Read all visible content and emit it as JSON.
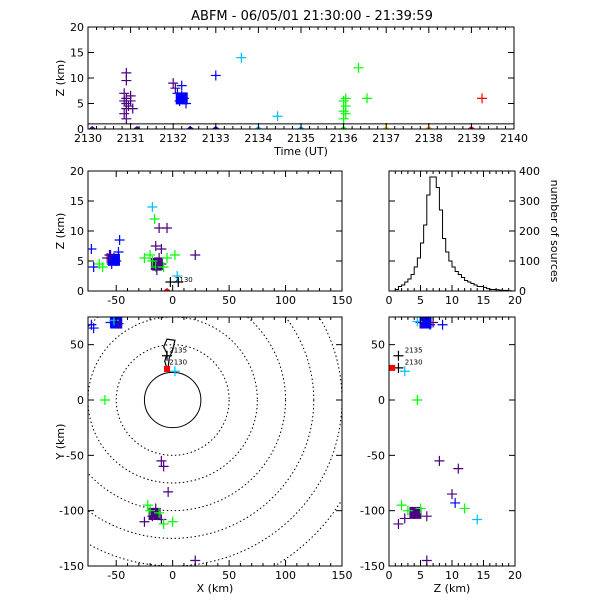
{
  "title": "ABFM - 06/05/01 21:30:00 - 21:39:59",
  "chart_data": [
    {
      "panel": "time-height",
      "type": "scatter",
      "xlabel": "Time (UT)",
      "ylabel": "Z (km)",
      "xlim": [
        2130,
        2140
      ],
      "ylim": [
        0,
        20
      ],
      "xticks": [
        2130,
        2131,
        2132,
        2133,
        2134,
        2135,
        2136,
        2137,
        2138,
        2139,
        2140
      ],
      "yticks": [
        0,
        5,
        10,
        15,
        20
      ],
      "hline": 1,
      "points": [
        {
          "x": 2130.9,
          "y": 11,
          "c": "#4b0082"
        },
        {
          "x": 2130.9,
          "y": 9.5,
          "c": "#4b0082"
        },
        {
          "x": 2130.85,
          "y": 7,
          "c": "#4b0082"
        },
        {
          "x": 2130.9,
          "y": 6,
          "c": "#4b0082"
        },
        {
          "x": 2130.85,
          "y": 5.5,
          "c": "#4b0082"
        },
        {
          "x": 2130.9,
          "y": 5,
          "c": "#4b0082"
        },
        {
          "x": 2130.95,
          "y": 4.5,
          "c": "#4b0082"
        },
        {
          "x": 2130.9,
          "y": 4,
          "c": "#4b0082"
        },
        {
          "x": 2130.85,
          "y": 3,
          "c": "#4b0082"
        },
        {
          "x": 2130.9,
          "y": 2,
          "c": "#4b0082"
        },
        {
          "x": 2131.0,
          "y": 6.5,
          "c": "#4b0082"
        },
        {
          "x": 2131.0,
          "y": 5.5,
          "c": "#4b0082"
        },
        {
          "x": 2131.05,
          "y": 4,
          "c": "#4b0082"
        },
        {
          "x": 2132.0,
          "y": 9,
          "c": "#4b0082"
        },
        {
          "x": 2132.05,
          "y": 8,
          "c": "#4b0082"
        },
        {
          "x": 2132.2,
          "y": 8.5,
          "c": "#0000ff"
        },
        {
          "x": 2132.1,
          "y": 7,
          "c": "#0000ff"
        },
        {
          "x": 2132.2,
          "y": 6.5,
          "c": "#0000ff"
        },
        {
          "x": 2132.25,
          "y": 6,
          "c": "#0000ff"
        },
        {
          "x": 2132.15,
          "y": 5.5,
          "c": "#0000ff"
        },
        {
          "x": 2132.3,
          "y": 5,
          "c": "#0000ff"
        },
        {
          "x": 2133.0,
          "y": 10.5,
          "c": "#0000ff"
        },
        {
          "x": 2133.6,
          "y": 14,
          "c": "#00bfff"
        },
        {
          "x": 2134.45,
          "y": 2.5,
          "c": "#00bfff"
        },
        {
          "x": 2136.0,
          "y": 5.5,
          "c": "#00ff00"
        },
        {
          "x": 2136.05,
          "y": 4.5,
          "c": "#00ff00"
        },
        {
          "x": 2136.0,
          "y": 3.5,
          "c": "#00ff00"
        },
        {
          "x": 2136.05,
          "y": 3,
          "c": "#00ff00"
        },
        {
          "x": 2136.0,
          "y": 2,
          "c": "#00ff00"
        },
        {
          "x": 2136.05,
          "y": 6,
          "c": "#00ff00"
        },
        {
          "x": 2136.35,
          "y": 12,
          "c": "#00ff00"
        },
        {
          "x": 2136.55,
          "y": 6,
          "c": "#00ff00"
        },
        {
          "x": 2139.25,
          "y": 6,
          "c": "#ff0000"
        }
      ],
      "ground_markers": [
        {
          "x": 2130.1,
          "c": "#4b0082"
        },
        {
          "x": 2131.15,
          "c": "#4b0082"
        },
        {
          "x": 2132.4,
          "c": "#0000ff"
        },
        {
          "x": 2133.0,
          "c": "#0000ff"
        },
        {
          "x": 2134.0,
          "c": "#00bfff"
        },
        {
          "x": 2135.0,
          "c": "#00bfff"
        },
        {
          "x": 2136.0,
          "c": "#00ff00"
        },
        {
          "x": 2137.0,
          "c": "#ffd700"
        },
        {
          "x": 2138.0,
          "c": "#ffa500"
        },
        {
          "x": 2139.0,
          "c": "#ff0000"
        }
      ],
      "blobs": [
        {
          "x": 2132.2,
          "y": 6,
          "c": "#0000ff"
        }
      ]
    },
    {
      "panel": "x-z",
      "type": "scatter",
      "xlabel": "",
      "ylabel": "Z (km)",
      "xlim": [
        -75,
        150
      ],
      "ylim": [
        0,
        20
      ],
      "xticks": [
        -50,
        0,
        50,
        100,
        150
      ],
      "yticks": [
        0,
        5,
        10,
        15,
        20
      ],
      "annotations": [
        {
          "text": "2130",
          "x": 2,
          "y": 1.5
        }
      ],
      "points": [
        {
          "x": -72,
          "y": 7,
          "c": "#0000ff"
        },
        {
          "x": -70,
          "y": 4,
          "c": "#0000ff"
        },
        {
          "x": -55,
          "y": 6,
          "c": "#0000ff"
        },
        {
          "x": -52,
          "y": 5.5,
          "c": "#0000ff"
        },
        {
          "x": -50,
          "y": 5,
          "c": "#0000ff"
        },
        {
          "x": -54,
          "y": 4.5,
          "c": "#0000ff"
        },
        {
          "x": -48,
          "y": 6.5,
          "c": "#0000ff"
        },
        {
          "x": -47,
          "y": 8.5,
          "c": "#0000ff"
        },
        {
          "x": -58,
          "y": 5.5,
          "c": "#4b0082"
        },
        {
          "x": -56,
          "y": 6,
          "c": "#4b0082"
        },
        {
          "x": -65,
          "y": 4.5,
          "c": "#00ff00"
        },
        {
          "x": -62,
          "y": 4,
          "c": "#00ff00"
        },
        {
          "x": -18,
          "y": 14,
          "c": "#00bfff"
        },
        {
          "x": -16,
          "y": 12,
          "c": "#00ff00"
        },
        {
          "x": -12,
          "y": 10.5,
          "c": "#4b0082"
        },
        {
          "x": -5,
          "y": 10.5,
          "c": "#4b0082"
        },
        {
          "x": -15,
          "y": 7.5,
          "c": "#4b0082"
        },
        {
          "x": -10,
          "y": 7,
          "c": "#4b0082"
        },
        {
          "x": -20,
          "y": 6,
          "c": "#00ff00"
        },
        {
          "x": -18,
          "y": 5,
          "c": "#00ff00"
        },
        {
          "x": -15,
          "y": 4,
          "c": "#00ff00"
        },
        {
          "x": -12,
          "y": 5.5,
          "c": "#4b0082"
        },
        {
          "x": -10,
          "y": 4.5,
          "c": "#4b0082"
        },
        {
          "x": -14,
          "y": 3.5,
          "c": "#4b0082"
        },
        {
          "x": -8,
          "y": 4,
          "c": "#00ff00"
        },
        {
          "x": -5,
          "y": 5.5,
          "c": "#00ff00"
        },
        {
          "x": -25,
          "y": 5.5,
          "c": "#00ff00"
        },
        {
          "x": 2,
          "y": 6,
          "c": "#00ff00"
        },
        {
          "x": 4,
          "y": 2.5,
          "c": "#00bfff"
        },
        {
          "x": 20,
          "y": 6,
          "c": "#4b0082"
        },
        {
          "x": -2,
          "y": 1.5,
          "c": "#000000"
        },
        {
          "x": 5,
          "y": 1.5,
          "c": "#000000"
        }
      ],
      "blobs": [
        {
          "x": -52,
          "y": 5.2,
          "c": "#0000ff"
        },
        {
          "x": -14,
          "y": 4.5,
          "c": "#4b0082"
        }
      ],
      "ground_markers": [
        {
          "x": -5,
          "c": "#ff0000"
        }
      ]
    },
    {
      "panel": "histogram",
      "type": "bar",
      "xlabel": "",
      "ylabel": "number of sources",
      "xlim": [
        0,
        20
      ],
      "ylim": [
        0,
        400
      ],
      "xticks": [
        0,
        5,
        10,
        15,
        20
      ],
      "yticks": [
        0,
        100,
        200,
        300,
        400
      ],
      "bin_width": 0.5,
      "bins_start": 0,
      "values": [
        0,
        0,
        5,
        15,
        20,
        30,
        40,
        55,
        80,
        110,
        160,
        220,
        320,
        380,
        380,
        345,
        270,
        175,
        130,
        100,
        80,
        65,
        55,
        45,
        35,
        30,
        25,
        20,
        15,
        15,
        12,
        8,
        5,
        5,
        4,
        3,
        2,
        2,
        1,
        0
      ]
    },
    {
      "panel": "x-y",
      "type": "scatter",
      "xlabel": "X (km)",
      "ylabel": "Y (km)",
      "xlim": [
        -75,
        150
      ],
      "ylim": [
        -150,
        75
      ],
      "xticks": [
        -50,
        0,
        50,
        100,
        150
      ],
      "yticks": [
        -150,
        -100,
        -50,
        0,
        50
      ],
      "range_rings_km": [
        25,
        50,
        75,
        100,
        125,
        150,
        175
      ],
      "annotations": [
        {
          "text": "2135",
          "x": -3,
          "y": 43
        },
        {
          "text": "2130",
          "x": -3,
          "y": 32
        }
      ],
      "points": [
        {
          "x": -72,
          "y": 68,
          "c": "#0000ff"
        },
        {
          "x": -70,
          "y": 65,
          "c": "#0000ff"
        },
        {
          "x": -55,
          "y": 70,
          "c": "#0000ff"
        },
        {
          "x": -50,
          "y": 71,
          "c": "#0000ff"
        },
        {
          "x": -48,
          "y": 69,
          "c": "#4b0082"
        },
        {
          "x": -52,
          "y": 72,
          "c": "#00bfff"
        },
        {
          "x": -5,
          "y": 40,
          "c": "#000000"
        },
        {
          "x": 2,
          "y": 26,
          "c": "#00bfff"
        },
        {
          "x": -60,
          "y": 0,
          "c": "#00ff00"
        },
        {
          "x": -10,
          "y": -55,
          "c": "#4b0082"
        },
        {
          "x": -8,
          "y": -60,
          "c": "#4b0082"
        },
        {
          "x": -4,
          "y": -83,
          "c": "#4b0082"
        },
        {
          "x": -22,
          "y": -95,
          "c": "#00ff00"
        },
        {
          "x": -20,
          "y": -100,
          "c": "#00ff00"
        },
        {
          "x": -18,
          "y": -105,
          "c": "#4b0082"
        },
        {
          "x": -15,
          "y": -98,
          "c": "#4b0082"
        },
        {
          "x": -12,
          "y": -102,
          "c": "#00ff00"
        },
        {
          "x": -10,
          "y": -108,
          "c": "#4b0082"
        },
        {
          "x": -25,
          "y": -110,
          "c": "#4b0082"
        },
        {
          "x": -8,
          "y": -112,
          "c": "#00ff00"
        },
        {
          "x": 0,
          "y": -110,
          "c": "#00ff00"
        },
        {
          "x": 20,
          "y": -145,
          "c": "#4b0082"
        }
      ],
      "blobs": [
        {
          "x": -50,
          "y": 70,
          "c": "#0000ff"
        },
        {
          "x": -16,
          "y": -103,
          "c": "#4b0082"
        }
      ],
      "track": [
        [
          -5,
          28
        ],
        [
          -7,
          35
        ],
        [
          -5,
          42
        ],
        [
          -8,
          48
        ],
        [
          -5,
          55
        ],
        [
          2,
          54
        ],
        [
          0,
          45
        ],
        [
          -3,
          38
        ],
        [
          -4,
          30
        ]
      ],
      "red_markers": [
        {
          "x": -5,
          "y": 28
        }
      ]
    },
    {
      "panel": "z-y",
      "type": "scatter",
      "xlabel": "Z (km)",
      "ylabel": "",
      "xlim": [
        0,
        20
      ],
      "ylim": [
        -150,
        75
      ],
      "xticks": [
        0,
        5,
        10,
        15,
        20
      ],
      "yticks": [
        -150,
        -100,
        -50,
        0,
        50
      ],
      "annotations": [
        {
          "text": "2135",
          "x": 2.5,
          "y": 43
        },
        {
          "text": "2130",
          "x": 2.5,
          "y": 32
        }
      ],
      "points": [
        {
          "x": 5,
          "y": 70,
          "c": "#4b0082"
        },
        {
          "x": 5.5,
          "y": 70,
          "c": "#0000ff"
        },
        {
          "x": 6.5,
          "y": 68,
          "c": "#0000ff"
        },
        {
          "x": 7,
          "y": 70,
          "c": "#4b0082"
        },
        {
          "x": 8.5,
          "y": 68,
          "c": "#0000ff"
        },
        {
          "x": 4.5,
          "y": 71,
          "c": "#00bfff"
        },
        {
          "x": 1.5,
          "y": 40,
          "c": "#000000"
        },
        {
          "x": 1.5,
          "y": 29,
          "c": "#000000"
        },
        {
          "x": 2.5,
          "y": 26,
          "c": "#00bfff"
        },
        {
          "x": 4.5,
          "y": 0,
          "c": "#00ff00"
        },
        {
          "x": 8,
          "y": -55,
          "c": "#4b0082"
        },
        {
          "x": 11,
          "y": -62,
          "c": "#4b0082"
        },
        {
          "x": 10,
          "y": -85,
          "c": "#4b0082"
        },
        {
          "x": 2,
          "y": -95,
          "c": "#00ff00"
        },
        {
          "x": 3,
          "y": -100,
          "c": "#00ff00"
        },
        {
          "x": 4,
          "y": -103,
          "c": "#4b0082"
        },
        {
          "x": 5,
          "y": -98,
          "c": "#00ff00"
        },
        {
          "x": 6,
          "y": -105,
          "c": "#4b0082"
        },
        {
          "x": 2.5,
          "y": -107,
          "c": "#4b0082"
        },
        {
          "x": 10.5,
          "y": -93,
          "c": "#0000ff"
        },
        {
          "x": 12,
          "y": -98,
          "c": "#00ff00"
        },
        {
          "x": 14,
          "y": -108,
          "c": "#00bfff"
        },
        {
          "x": 1.5,
          "y": -112,
          "c": "#4b0082"
        },
        {
          "x": 6,
          "y": -145,
          "c": "#4b0082"
        }
      ],
      "blobs": [
        {
          "x": 5.8,
          "y": 70,
          "c": "#0000ff"
        },
        {
          "x": 4.2,
          "y": -102,
          "c": "#4b0082"
        }
      ],
      "red_markers": [
        {
          "x": 0.5,
          "y": 29
        }
      ]
    }
  ]
}
